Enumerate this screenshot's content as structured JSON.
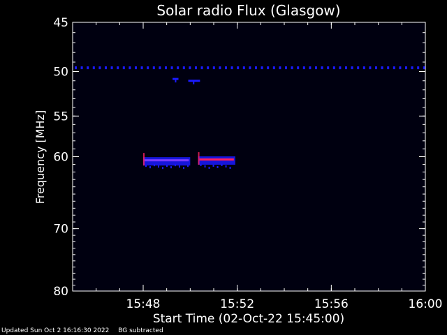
{
  "chart_data": {
    "type": "heatmap",
    "title": "Solar radio Flux (Glasgow)",
    "xlabel": "Start Time (02-Oct-22 15:45:00)",
    "ylabel": "Frequency [MHz]",
    "x_unit": "time (HH:MM)",
    "xlim": [
      "15:45",
      "16:00"
    ],
    "ylim": [
      45,
      80
    ],
    "y_scale": "log",
    "y_inverted": true,
    "x_ticks": [
      "15:48",
      "15:52",
      "15:56",
      "16:00"
    ],
    "y_ticks": [
      45,
      50,
      55,
      60,
      70,
      80
    ],
    "background_color": "#000010",
    "colors": {
      "axis": "#ffffff",
      "low": "#1a1aff",
      "high": "#ff2060"
    },
    "features": [
      {
        "name": "RFI line",
        "freq_mhz": 49.6,
        "t_start": "15:45",
        "t_end": "16:00",
        "intensity": "medium",
        "pattern": "dotted"
      },
      {
        "name": "RFI burst",
        "freq_mhz": 50.8,
        "t_start": "15:49:15",
        "t_end": "15:49:30",
        "intensity": "low"
      },
      {
        "name": "RFI burst",
        "freq_mhz": 51.0,
        "t_start": "15:49:55",
        "t_end": "15:50:25",
        "intensity": "low"
      },
      {
        "name": "Emission band",
        "freq_mhz": 60.6,
        "t_start": "15:48:00",
        "t_end": "15:50:00",
        "intensity": "medium"
      },
      {
        "name": "Emission band",
        "freq_mhz": 60.5,
        "t_start": "15:50:20",
        "t_end": "15:51:55",
        "intensity": "high"
      }
    ]
  },
  "footer": {
    "updated": "Updated Sun Oct  2 16:16:30 2022",
    "note": "BG subtracted"
  }
}
